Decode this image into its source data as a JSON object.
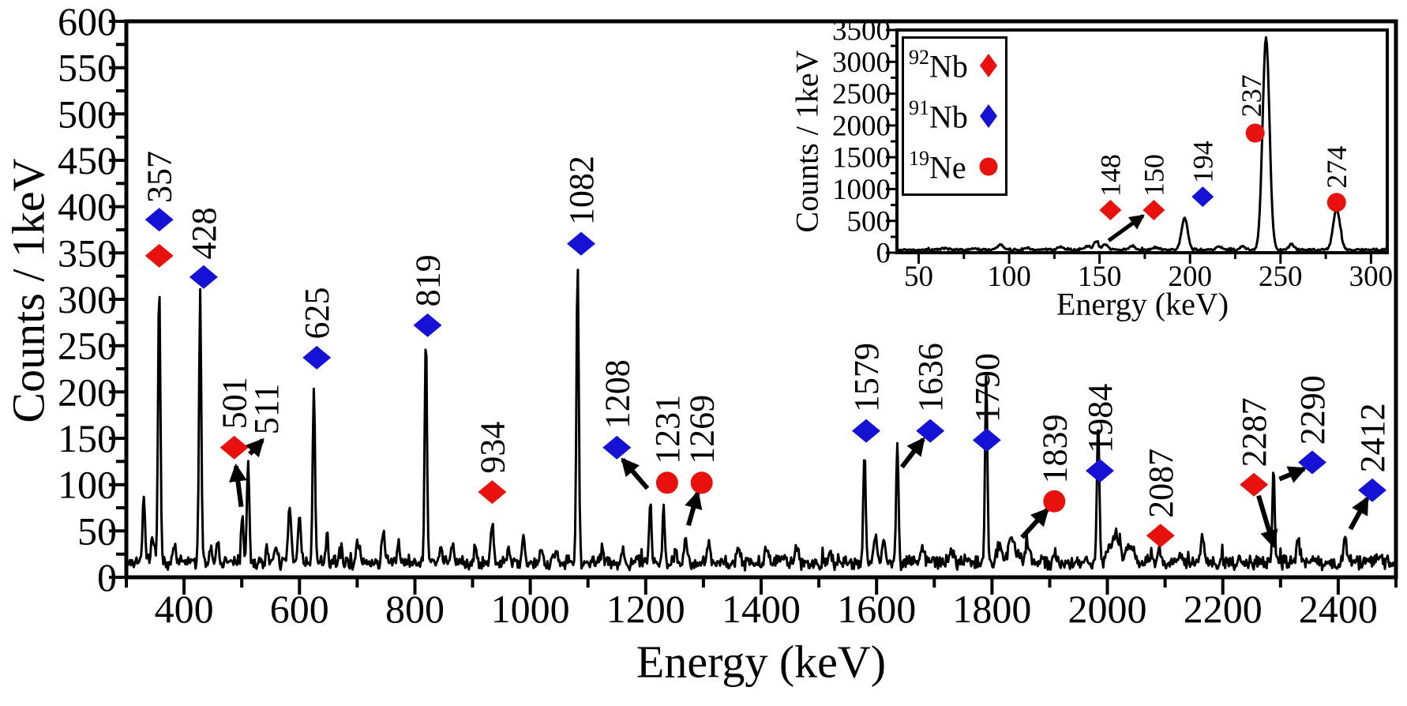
{
  "colors": {
    "background": "#ffffff",
    "spectrum": "#000000",
    "axis": "#000000",
    "text": "#000000",
    "nb92": "#e8110e",
    "nb91": "#1512d6",
    "ne19": "#e8110e"
  },
  "legend": {
    "items": [
      {
        "id": "92Nb",
        "mass": "92",
        "element": "Nb",
        "marker": "diamond",
        "color": "#e8110e"
      },
      {
        "id": "91Nb",
        "mass": "91",
        "element": "Nb",
        "marker": "diamond",
        "color": "#1512d6"
      },
      {
        "id": "19Ne",
        "mass": "19",
        "element": "Ne",
        "marker": "circle",
        "color": "#e8110e"
      }
    ]
  },
  "chart_data": {
    "type": "line",
    "main": {
      "xlabel": "Energy (keV)",
      "ylabel": "Counts / 1keV",
      "xlim": [
        300,
        2500
      ],
      "ylim": [
        0,
        600
      ],
      "xticks": [
        400,
        600,
        800,
        1000,
        1200,
        1400,
        1600,
        1800,
        2000,
        2200,
        2400
      ],
      "yticks": [
        0,
        50,
        100,
        150,
        200,
        250,
        300,
        350,
        400,
        450,
        500,
        550,
        600
      ],
      "xtick_minor": 100,
      "ytick_minor": 25,
      "grid": false,
      "baseline": 16,
      "noise": 9,
      "seed": 7,
      "step": 1.6,
      "peaks": [
        [
          330,
          78,
          2
        ],
        [
          345,
          25,
          2
        ],
        [
          357,
          302,
          2
        ],
        [
          383,
          22,
          2
        ],
        [
          428,
          287,
          2
        ],
        [
          446,
          20,
          2
        ],
        [
          458,
          30,
          2
        ],
        [
          501,
          50,
          2
        ],
        [
          511,
          108,
          2
        ],
        [
          545,
          14,
          2.5
        ],
        [
          560,
          16,
          2.5
        ],
        [
          583,
          60,
          2.5
        ],
        [
          600,
          50,
          2.5
        ],
        [
          625,
          188,
          2
        ],
        [
          648,
          28,
          2
        ],
        [
          672,
          14,
          2.5
        ],
        [
          700,
          20,
          2.5
        ],
        [
          745,
          32,
          2.5
        ],
        [
          772,
          16,
          2.5
        ],
        [
          819,
          235,
          2
        ],
        [
          845,
          18,
          2.5
        ],
        [
          865,
          20,
          2.5
        ],
        [
          905,
          16,
          2.5
        ],
        [
          934,
          40,
          2.5
        ],
        [
          962,
          14,
          2.5
        ],
        [
          988,
          28,
          2.5
        ],
        [
          1020,
          16,
          2.5
        ],
        [
          1045,
          14,
          2.5
        ],
        [
          1082,
          322,
          2
        ],
        [
          1125,
          16,
          2.5
        ],
        [
          1160,
          14,
          2.5
        ],
        [
          1208,
          70,
          2
        ],
        [
          1231,
          60,
          2
        ],
        [
          1252,
          18,
          2
        ],
        [
          1269,
          30,
          2.5
        ],
        [
          1310,
          20,
          2.5
        ],
        [
          1360,
          12,
          3
        ],
        [
          1410,
          14,
          3
        ],
        [
          1462,
          16,
          3
        ],
        [
          1520,
          12,
          3
        ],
        [
          1579,
          122,
          2
        ],
        [
          1598,
          28,
          3
        ],
        [
          1612,
          26,
          3
        ],
        [
          1636,
          133,
          2
        ],
        [
          1680,
          18,
          3
        ],
        [
          1730,
          14,
          3
        ],
        [
          1790,
          200,
          2
        ],
        [
          1812,
          20,
          4
        ],
        [
          1835,
          26,
          7
        ],
        [
          1862,
          16,
          4
        ],
        [
          1910,
          12,
          3
        ],
        [
          1984,
          160,
          2
        ],
        [
          2012,
          26,
          9
        ],
        [
          2040,
          18,
          7
        ],
        [
          2090,
          12,
          3
        ],
        [
          2125,
          10,
          3
        ],
        [
          2165,
          30,
          2.5
        ],
        [
          2288,
          104,
          2
        ],
        [
          2330,
          30,
          2.5
        ],
        [
          2412,
          30,
          2.5
        ],
        [
          2470,
          10,
          3
        ]
      ],
      "annotations": [
        {
          "label": "357",
          "x": 357,
          "y": 404,
          "markers": [
            {
              "iso": "91Nb",
              "x": 357,
              "y": 386
            },
            {
              "iso": "92Nb",
              "x": 357,
              "y": 347
            }
          ]
        },
        {
          "label": "428",
          "x": 434,
          "y": 343,
          "markers": [
            {
              "iso": "91Nb",
              "x": 434,
              "y": 324
            }
          ]
        },
        {
          "label": "501",
          "x": 487,
          "y": 160,
          "markers": [
            {
              "iso": "92Nb",
              "x": 487,
              "y": 140
            }
          ],
          "arrow": [
            499,
            76,
            490,
            120
          ]
        },
        {
          "label": "511",
          "x": 542,
          "y": 154,
          "markers": [],
          "arrow": [
            514,
            133,
            536,
            148
          ]
        },
        {
          "label": "625",
          "x": 630,
          "y": 257,
          "markers": [
            {
              "iso": "91Nb",
              "x": 630,
              "y": 237
            }
          ]
        },
        {
          "label": "819",
          "x": 822,
          "y": 292,
          "markers": [
            {
              "iso": "91Nb",
              "x": 822,
              "y": 272
            }
          ]
        },
        {
          "label": "934",
          "x": 934,
          "y": 112,
          "markers": [
            {
              "iso": "92Nb",
              "x": 934,
              "y": 92
            }
          ]
        },
        {
          "label": "1082",
          "x": 1088,
          "y": 380,
          "markers": [
            {
              "iso": "91Nb",
              "x": 1088,
              "y": 360
            }
          ]
        },
        {
          "label": "1208",
          "x": 1150,
          "y": 160,
          "markers": [
            {
              "iso": "91Nb",
              "x": 1150,
              "y": 140
            }
          ],
          "arrow": [
            1203,
            96,
            1160,
            127
          ]
        },
        {
          "label": "1231",
          "x": 1237,
          "y": 122,
          "markers": [
            {
              "iso": "19Ne",
              "x": 1237,
              "y": 102
            }
          ]
        },
        {
          "label": "1269",
          "x": 1297,
          "y": 122,
          "markers": [
            {
              "iso": "19Ne",
              "x": 1297,
              "y": 102
            }
          ],
          "arrow": [
            1274,
            56,
            1290,
            91
          ]
        },
        {
          "label": "1579",
          "x": 1582,
          "y": 178,
          "markers": [
            {
              "iso": "91Nb",
              "x": 1582,
              "y": 158
            }
          ]
        },
        {
          "label": "1636",
          "x": 1693,
          "y": 178,
          "markers": [
            {
              "iso": "91Nb",
              "x": 1693,
              "y": 158
            }
          ],
          "arrow": [
            1644,
            119,
            1681,
            149
          ]
        },
        {
          "label": "1790",
          "x": 1791,
          "y": 167,
          "markers": [
            {
              "iso": "91Nb",
              "x": 1791,
              "y": 148
            }
          ]
        },
        {
          "label": "1839",
          "x": 1908,
          "y": 101,
          "markers": [
            {
              "iso": "19Ne",
              "x": 1908,
              "y": 82
            }
          ],
          "arrow": [
            1852,
            43,
            1896,
            73
          ]
        },
        {
          "label": "1984",
          "x": 1987,
          "y": 134,
          "markers": [
            {
              "iso": "91Nb",
              "x": 1987,
              "y": 115
            }
          ]
        },
        {
          "label": "2087",
          "x": 2092,
          "y": 64,
          "markers": [
            {
              "iso": "92Nb",
              "x": 2092,
              "y": 45
            }
          ]
        },
        {
          "label": "2287",
          "x": 2254,
          "y": 119,
          "markers": [
            {
              "iso": "92Nb",
              "x": 2254,
              "y": 100
            }
          ],
          "arrow": [
            2262,
            88,
            2288,
            34
          ]
        },
        {
          "label": "2290",
          "x": 2355,
          "y": 143,
          "markers": [
            {
              "iso": "91Nb",
              "x": 2355,
              "y": 124
            }
          ],
          "arrow": [
            2298,
            106,
            2341,
            117
          ]
        },
        {
          "label": "2412",
          "x": 2459,
          "y": 113,
          "markers": [
            {
              "iso": "91Nb",
              "x": 2459,
              "y": 94
            }
          ],
          "arrow": [
            2421,
            52,
            2450,
            85
          ]
        }
      ]
    },
    "inset": {
      "xlabel": "Energy (keV)",
      "ylabel": "Counts / 1keV",
      "xlim": [
        38,
        309
      ],
      "ylim": [
        0,
        3500
      ],
      "xticks": [
        50,
        100,
        150,
        200,
        250,
        300
      ],
      "yticks": [
        0,
        500,
        1000,
        1500,
        2000,
        2500,
        3000,
        3500
      ],
      "xtick_minor": 25,
      "ytick_minor": 250,
      "grid": false,
      "baseline": 45,
      "noise": 22,
      "seed": 99,
      "step": 0.5,
      "peaks": [
        [
          65,
          30,
          1.6
        ],
        [
          80,
          25,
          1.6
        ],
        [
          95,
          85,
          1.6
        ],
        [
          110,
          35,
          1.6
        ],
        [
          128,
          50,
          1.6
        ],
        [
          143,
          55,
          1.6
        ],
        [
          148,
          120,
          1.4
        ],
        [
          153,
          85,
          1.4
        ],
        [
          168,
          65,
          1.6
        ],
        [
          181,
          45,
          1.6
        ],
        [
          197,
          500,
          1.7
        ],
        [
          216,
          55,
          1.6
        ],
        [
          229,
          55,
          1.6
        ],
        [
          242,
          3330,
          1.9
        ],
        [
          256,
          85,
          1.6
        ],
        [
          281,
          640,
          1.9
        ]
      ],
      "annotations": [
        {
          "label": "148",
          "x": 156,
          "y": 880,
          "markers": [
            {
              "iso": "92Nb",
              "x": 156,
              "y": 670
            }
          ]
        },
        {
          "label": "150",
          "x": 180,
          "y": 880,
          "markers": [
            {
              "iso": "92Nb",
              "x": 180,
              "y": 670
            }
          ],
          "arrow": [
            155,
            190,
            174,
            580
          ]
        },
        {
          "label": "194",
          "x": 207,
          "y": 1090,
          "markers": [
            {
              "iso": "91Nb",
              "x": 207,
              "y": 880
            }
          ]
        },
        {
          "label": "237",
          "x": 234,
          "y": 2130,
          "markers": [
            {
              "iso": "19Ne",
              "x": 236,
              "y": 1880
            }
          ]
        },
        {
          "label": "274",
          "x": 281,
          "y": 1010,
          "markers": [
            {
              "iso": "19Ne",
              "x": 281,
              "y": 790
            }
          ]
        }
      ]
    }
  }
}
